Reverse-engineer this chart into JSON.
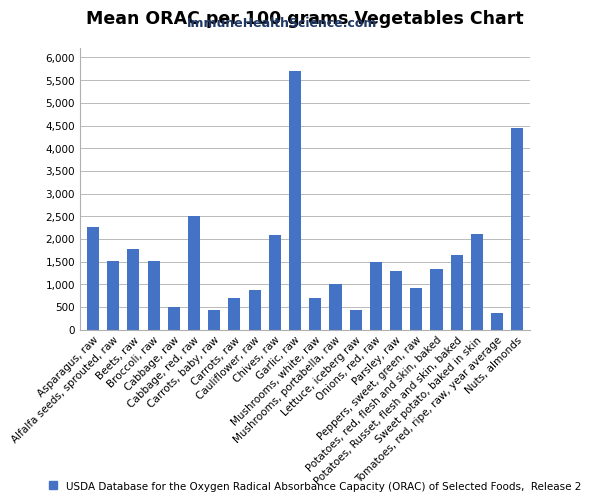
{
  "title": "Mean ORAC per 100 grams Vegetables Chart",
  "subtitle": "ImmuneHealthScience.com",
  "legend_text": "USDA Database for the Oxygen Radical Absorbance Capacity (ORAC) of Selected Foods,  Release 2",
  "bar_color": "#4472C4",
  "legend_color": "#4472C4",
  "categories": [
    "Asparagus, raw",
    "Alfalfa seeds, sprouted, raw",
    "Beets, raw",
    "Broccoli, raw",
    "Cabbage, raw",
    "Cabbage, red, raw",
    "Carrots, baby, raw",
    "Carrots, raw",
    "Cauliflower, raw",
    "Chives, raw",
    "Garlic, raw",
    "Mushrooms, white, raw",
    "Mushrooms, portabella, raw",
    "Lettuce, iceberg raw",
    "Onions, red, raw",
    "Parsley, raw",
    "Peppers, sweet, green, raw",
    "Potatoes, red, flesh and skin, baked",
    "Potatoes, Russet, flesh and skin, baked",
    "Sweet potato, baked in skin",
    "Tomatoes, red, ripe, raw, year average",
    "Nuts, almonds"
  ],
  "values": [
    2252,
    1510,
    1776,
    1510,
    508,
    2496,
    436,
    697,
    882,
    2094,
    5708,
    691,
    1006,
    438,
    1501,
    1301,
    923,
    1326,
    1650,
    2115,
    368,
    4454
  ],
  "ylim": [
    0,
    6200
  ],
  "yticks": [
    0,
    500,
    1000,
    1500,
    2000,
    2500,
    3000,
    3500,
    4000,
    4500,
    5000,
    5500,
    6000
  ],
  "background_color": "#ffffff",
  "grid_color": "#b0b0b0",
  "title_fontsize": 12.5,
  "subtitle_fontsize": 9,
  "tick_fontsize": 7.5,
  "legend_fontsize": 7.5,
  "subtitle_color": "#1f3864"
}
